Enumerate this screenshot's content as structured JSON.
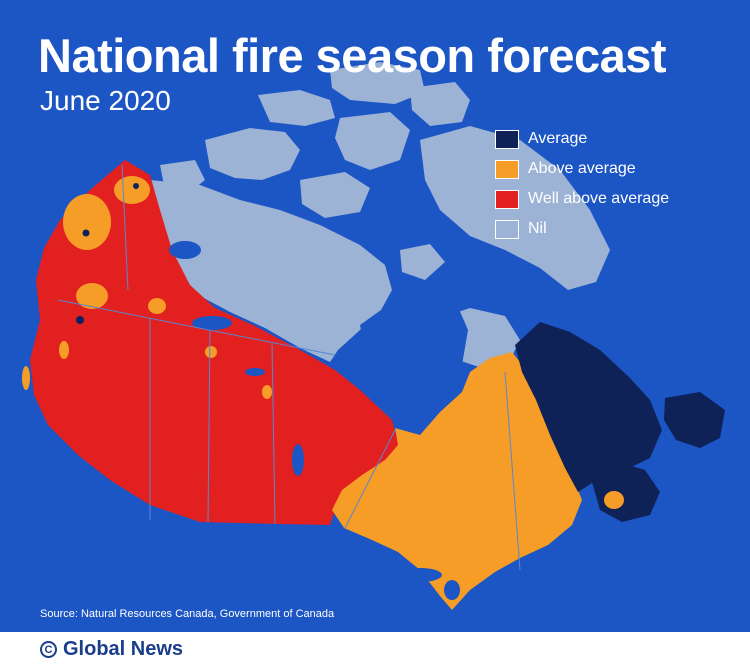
{
  "title": "National fire season forecast",
  "subtitle": "June 2020",
  "legend": [
    {
      "label": "Average",
      "color": "#0e2257"
    },
    {
      "label": "Above average",
      "color": "#f59d26"
    },
    {
      "label": "Well above average",
      "color": "#e2201f"
    },
    {
      "label": "Nil",
      "color": "#9cb3d6"
    }
  ],
  "colors": {
    "ocean": "#1c55c4",
    "average": "#0e2257",
    "above_average": "#f59d26",
    "well_above_average": "#e2201f",
    "nil": "#9cb3d6",
    "lakes": "#1c55c4",
    "borders": "#5a86cf"
  },
  "source": "Source: Natural Resources Canada, Government of Canada",
  "footer": {
    "brand": "Global News",
    "icon": "copyright-icon"
  }
}
